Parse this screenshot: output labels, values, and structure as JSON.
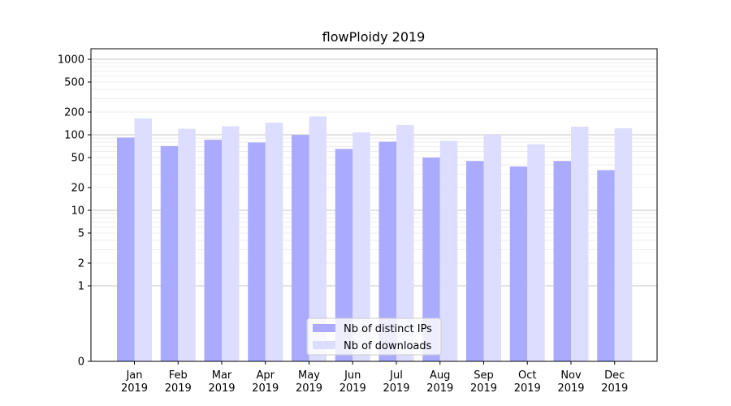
{
  "chart_data": {
    "type": "bar",
    "title": "flowPloidy 2019",
    "xlabel": "",
    "ylabel": "",
    "yscale": "symlog",
    "ylim": [
      0,
      1300
    ],
    "yticks": [
      0,
      1,
      2,
      5,
      10,
      20,
      50,
      100,
      200,
      500,
      1000
    ],
    "categories": [
      [
        "Jan",
        "2019"
      ],
      [
        "Feb",
        "2019"
      ],
      [
        "Mar",
        "2019"
      ],
      [
        "Apr",
        "2019"
      ],
      [
        "May",
        "2019"
      ],
      [
        "Jun",
        "2019"
      ],
      [
        "Jul",
        "2019"
      ],
      [
        "Aug",
        "2019"
      ],
      [
        "Sep",
        "2019"
      ],
      [
        "Oct",
        "2019"
      ],
      [
        "Nov",
        "2019"
      ],
      [
        "Dec",
        "2019"
      ]
    ],
    "series": [
      {
        "name": "Nb of distinct IPs",
        "color": "#aaaaff",
        "values": [
          92,
          71,
          86,
          79,
          99,
          65,
          81,
          50,
          45,
          38,
          45,
          34
        ]
      },
      {
        "name": "Nb of downloads",
        "color": "#ddddff",
        "values": [
          165,
          120,
          130,
          145,
          175,
          108,
          135,
          83,
          100,
          75,
          128,
          122
        ]
      }
    ],
    "legend": "lower-center",
    "grid": true
  }
}
